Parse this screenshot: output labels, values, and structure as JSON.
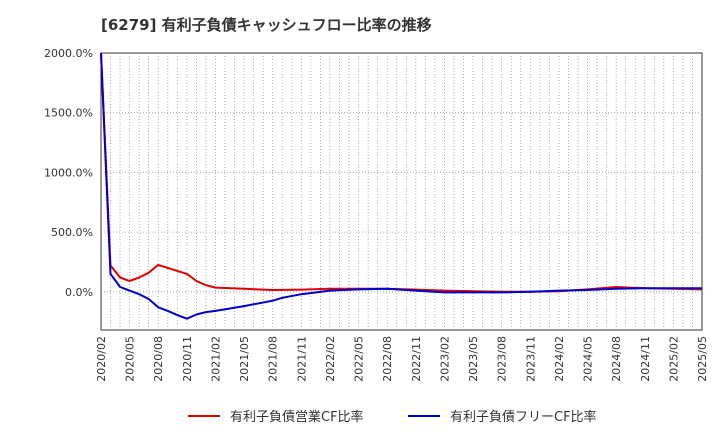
{
  "chart_data": {
    "type": "line",
    "title": "[6279]  有利子負債キャッシュフロー比率の推移",
    "xlabel": "",
    "ylabel": "",
    "ylim": [
      -320,
      2000
    ],
    "yticks": [
      0,
      500,
      1000,
      1500,
      2000
    ],
    "ytick_labels": [
      "0.0%",
      "500.0%",
      "1000.0%",
      "1500.0%",
      "2000.0%"
    ],
    "xtick_labels": [
      "2020/02",
      "2020/05",
      "2020/08",
      "2020/11",
      "2021/02",
      "2021/05",
      "2021/08",
      "2021/11",
      "2022/02",
      "2022/05",
      "2022/08",
      "2022/11",
      "2023/02",
      "2023/05",
      "2023/08",
      "2023/11",
      "2024/02",
      "2024/05",
      "2024/08",
      "2024/11",
      "2025/02",
      "2025/05"
    ],
    "x_start": "2020/02",
    "x_months": 63,
    "grid": true,
    "legend_position": "bottom",
    "series": [
      {
        "name": "有利子負債営業CF比率",
        "color": "#dd0000",
        "points": [
          [
            0,
            2000
          ],
          [
            1,
            220
          ],
          [
            2,
            120
          ],
          [
            3,
            90
          ],
          [
            4,
            120
          ],
          [
            5,
            160
          ],
          [
            6,
            225
          ],
          [
            7,
            200
          ],
          [
            8,
            175
          ],
          [
            9,
            150
          ],
          [
            10,
            90
          ],
          [
            11,
            55
          ],
          [
            12,
            35
          ],
          [
            15,
            25
          ],
          [
            18,
            15
          ],
          [
            21,
            18
          ],
          [
            24,
            25
          ],
          [
            27,
            25
          ],
          [
            30,
            25
          ],
          [
            33,
            18
          ],
          [
            36,
            10
          ],
          [
            39,
            5
          ],
          [
            42,
            0
          ],
          [
            45,
            0
          ],
          [
            48,
            5
          ],
          [
            51,
            20
          ],
          [
            54,
            40
          ],
          [
            57,
            30
          ],
          [
            60,
            25
          ],
          [
            63,
            20
          ]
        ]
      },
      {
        "name": "有利子負債フリーCF比率",
        "color": "#0000cc",
        "points": [
          [
            0,
            2000
          ],
          [
            1,
            150
          ],
          [
            2,
            40
          ],
          [
            3,
            10
          ],
          [
            4,
            -20
          ],
          [
            5,
            -60
          ],
          [
            6,
            -130
          ],
          [
            7,
            -160
          ],
          [
            8,
            -195
          ],
          [
            9,
            -225
          ],
          [
            10,
            -190
          ],
          [
            11,
            -170
          ],
          [
            12,
            -160
          ],
          [
            15,
            -120
          ],
          [
            18,
            -75
          ],
          [
            19,
            -50
          ],
          [
            21,
            -20
          ],
          [
            24,
            10
          ],
          [
            27,
            20
          ],
          [
            30,
            25
          ],
          [
            33,
            10
          ],
          [
            36,
            -5
          ],
          [
            39,
            -5
          ],
          [
            42,
            -5
          ],
          [
            45,
            0
          ],
          [
            48,
            10
          ],
          [
            51,
            15
          ],
          [
            54,
            25
          ],
          [
            57,
            30
          ],
          [
            60,
            30
          ],
          [
            63,
            30
          ]
        ]
      }
    ]
  }
}
